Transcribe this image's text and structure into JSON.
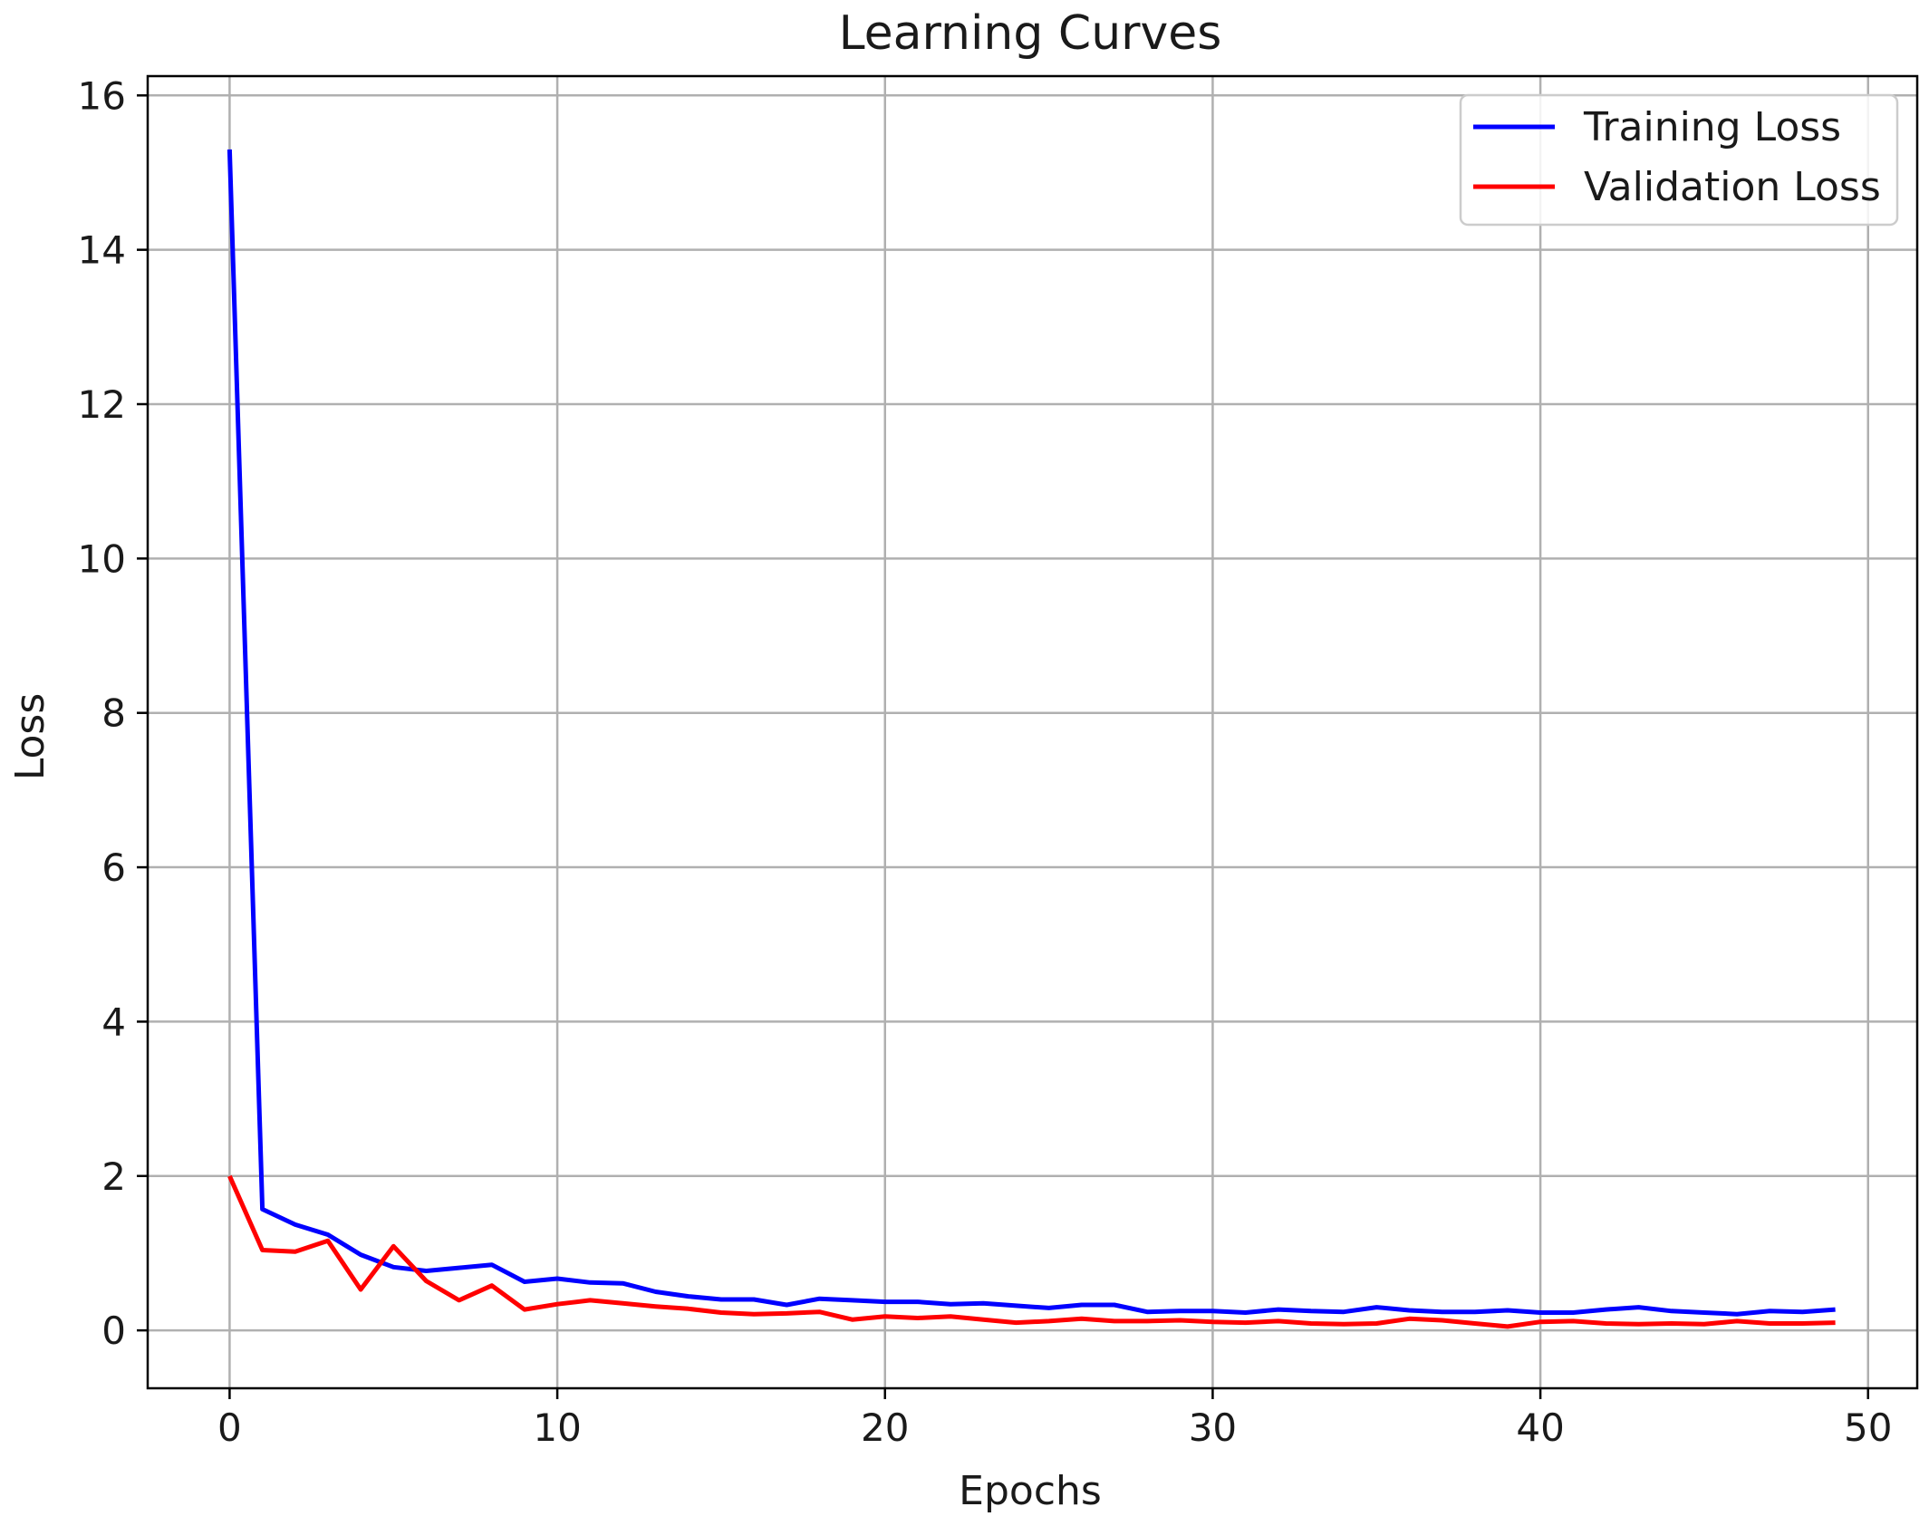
{
  "chart_data": {
    "type": "line",
    "title": "Learning Curves",
    "xlabel": "Epochs",
    "ylabel": "Loss",
    "xlim": [
      -2.5,
      51.5
    ],
    "ylim": [
      -0.75,
      16.25
    ],
    "xticks": [
      0,
      10,
      20,
      30,
      40,
      50
    ],
    "yticks": [
      0,
      2,
      4,
      6,
      8,
      10,
      12,
      14,
      16
    ],
    "grid": true,
    "legend_position": "top-right",
    "series": [
      {
        "name": "Training Loss",
        "color": "#0000ff",
        "x": [
          0,
          1,
          2,
          3,
          4,
          5,
          6,
          7,
          8,
          9,
          10,
          11,
          12,
          13,
          14,
          15,
          16,
          17,
          18,
          19,
          20,
          21,
          22,
          23,
          24,
          25,
          26,
          27,
          28,
          29,
          30,
          31,
          32,
          33,
          34,
          35,
          36,
          37,
          38,
          39,
          40,
          41,
          42,
          43,
          44,
          45,
          46,
          47,
          48,
          49
        ],
        "y": [
          15.3,
          1.57,
          1.37,
          1.24,
          0.98,
          0.82,
          0.77,
          0.81,
          0.85,
          0.63,
          0.67,
          0.62,
          0.61,
          0.5,
          0.44,
          0.4,
          0.4,
          0.33,
          0.41,
          0.39,
          0.37,
          0.37,
          0.34,
          0.35,
          0.32,
          0.29,
          0.33,
          0.33,
          0.24,
          0.25,
          0.25,
          0.23,
          0.27,
          0.25,
          0.24,
          0.3,
          0.26,
          0.24,
          0.24,
          0.26,
          0.23,
          0.23,
          0.27,
          0.3,
          0.25,
          0.23,
          0.21,
          0.25,
          0.24,
          0.27
        ]
      },
      {
        "name": "Validation Loss",
        "color": "#ff0000",
        "x": [
          0,
          1,
          2,
          3,
          4,
          5,
          6,
          7,
          8,
          9,
          10,
          11,
          12,
          13,
          14,
          15,
          16,
          17,
          18,
          19,
          20,
          21,
          22,
          23,
          24,
          25,
          26,
          27,
          28,
          29,
          30,
          31,
          32,
          33,
          34,
          35,
          36,
          37,
          38,
          39,
          40,
          41,
          42,
          43,
          44,
          45,
          46,
          47,
          48,
          49
        ],
        "y": [
          2.0,
          1.04,
          1.02,
          1.16,
          0.53,
          1.09,
          0.64,
          0.39,
          0.58,
          0.27,
          0.34,
          0.39,
          0.35,
          0.31,
          0.28,
          0.23,
          0.21,
          0.22,
          0.24,
          0.14,
          0.18,
          0.16,
          0.18,
          0.14,
          0.1,
          0.12,
          0.15,
          0.12,
          0.12,
          0.13,
          0.11,
          0.1,
          0.12,
          0.09,
          0.08,
          0.09,
          0.15,
          0.13,
          0.09,
          0.05,
          0.11,
          0.12,
          0.09,
          0.08,
          0.09,
          0.08,
          0.12,
          0.09,
          0.09,
          0.1
        ]
      }
    ]
  }
}
